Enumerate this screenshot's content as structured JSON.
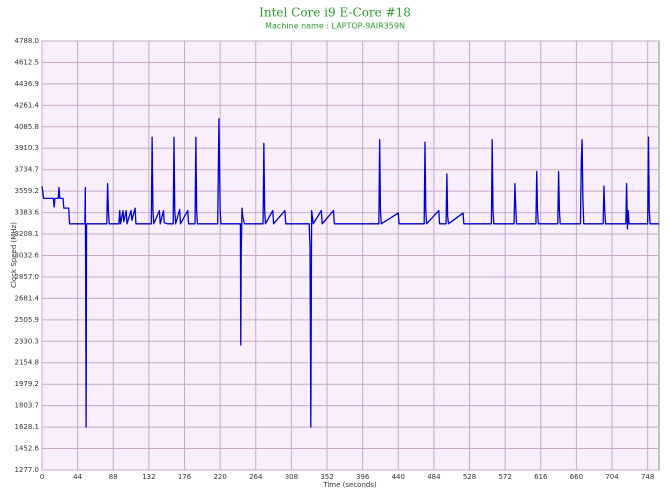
{
  "chart_data": {
    "type": "line",
    "title": "Intel Core i9 E-Core #18",
    "subtitle": "Machine name : LAPTOP-9AIR359N",
    "x_label": "Time (seconds)",
    "y_label": "Clock Speed (MHz)",
    "color": "#0000cc",
    "grid": true,
    "xlim": [
      0,
      762
    ],
    "xticks": [
      0,
      44,
      88,
      132,
      176,
      220,
      264,
      308,
      352,
      396,
      440,
      484,
      528,
      572,
      616,
      660,
      704,
      748
    ],
    "ylim": [
      1277,
      4788
    ],
    "yticks": [
      {
        "value": 1277,
        "label": "1277.0"
      },
      1452.6,
      1628.1,
      1803.7,
      1979.2,
      2154.8,
      2330.3,
      2505.9,
      2681.4,
      {
        "value": 2857,
        "label": "2857.0"
      },
      3032.6,
      3208.1,
      3383.6,
      3559.2,
      3734.7,
      3910.3,
      4085.8,
      4261.4,
      4436.9,
      4612.5,
      {
        "value": 4788,
        "label": "4788.0"
      }
    ],
    "x": [
      0,
      2,
      14,
      15,
      16,
      20,
      21,
      22,
      26,
      27,
      33,
      34,
      53,
      53.5,
      54,
      54.5,
      55,
      80,
      81,
      82,
      83,
      95,
      96,
      97,
      100,
      101,
      104,
      105,
      110,
      111,
      115,
      116,
      135,
      136,
      137,
      138,
      145,
      146,
      150,
      151,
      155,
      162,
      163,
      164,
      165,
      170,
      171,
      180,
      181,
      189,
      190,
      191,
      192,
      217,
      218.5,
      220,
      221,
      240,
      245,
      245.5,
      246,
      247,
      248,
      250,
      273,
      274,
      275,
      276,
      285,
      286,
      300,
      301,
      330,
      331,
      332,
      333,
      335,
      345,
      346,
      360,
      361,
      416,
      417,
      418,
      419,
      440,
      441,
      472,
      473,
      474,
      475,
      490,
      491,
      499,
      500,
      501,
      502,
      520,
      521,
      555,
      556,
      557,
      558,
      583,
      584,
      585,
      586,
      610,
      611,
      612,
      613,
      637,
      638,
      639,
      640,
      665,
      666,
      667,
      668,
      669,
      693,
      694,
      695,
      696,
      721,
      722,
      723,
      724,
      725,
      748,
      749,
      750,
      751,
      762
    ],
    "values": [
      3600,
      3500,
      3500,
      3430,
      3500,
      3500,
      3590,
      3500,
      3500,
      3420,
      3420,
      3292,
      3292,
      3590,
      2700,
      1628,
      3292,
      3292,
      3620,
      3400,
      3292,
      3292,
      3400,
      3292,
      3400,
      3310,
      3400,
      3292,
      3400,
      3320,
      3420,
      3292,
      3292,
      4000,
      3400,
      3292,
      3400,
      3292,
      3400,
      3300,
      3292,
      3292,
      4000,
      3400,
      3292,
      3410,
      3292,
      3400,
      3292,
      3292,
      4000,
      3400,
      3292,
      3292,
      4150,
      3400,
      3292,
      3292,
      3292,
      2300,
      3030,
      3420,
      3350,
      3292,
      3292,
      3950,
      3400,
      3292,
      3400,
      3292,
      3400,
      3292,
      3292,
      3100,
      1628,
      3400,
      3292,
      3400,
      3292,
      3400,
      3292,
      3292,
      3980,
      3400,
      3292,
      3380,
      3292,
      3292,
      3960,
      3400,
      3292,
      3400,
      3292,
      3292,
      3700,
      3350,
      3292,
      3380,
      3292,
      3292,
      3980,
      3400,
      3292,
      3292,
      3620,
      3450,
      3292,
      3292,
      3720,
      3400,
      3292,
      3292,
      3720,
      3400,
      3292,
      3292,
      3800,
      3980,
      3500,
      3292,
      3292,
      3600,
      3400,
      3292,
      3292,
      3620,
      3250,
      3400,
      3292,
      3292,
      4000,
      3400,
      3292,
      3292
    ]
  }
}
